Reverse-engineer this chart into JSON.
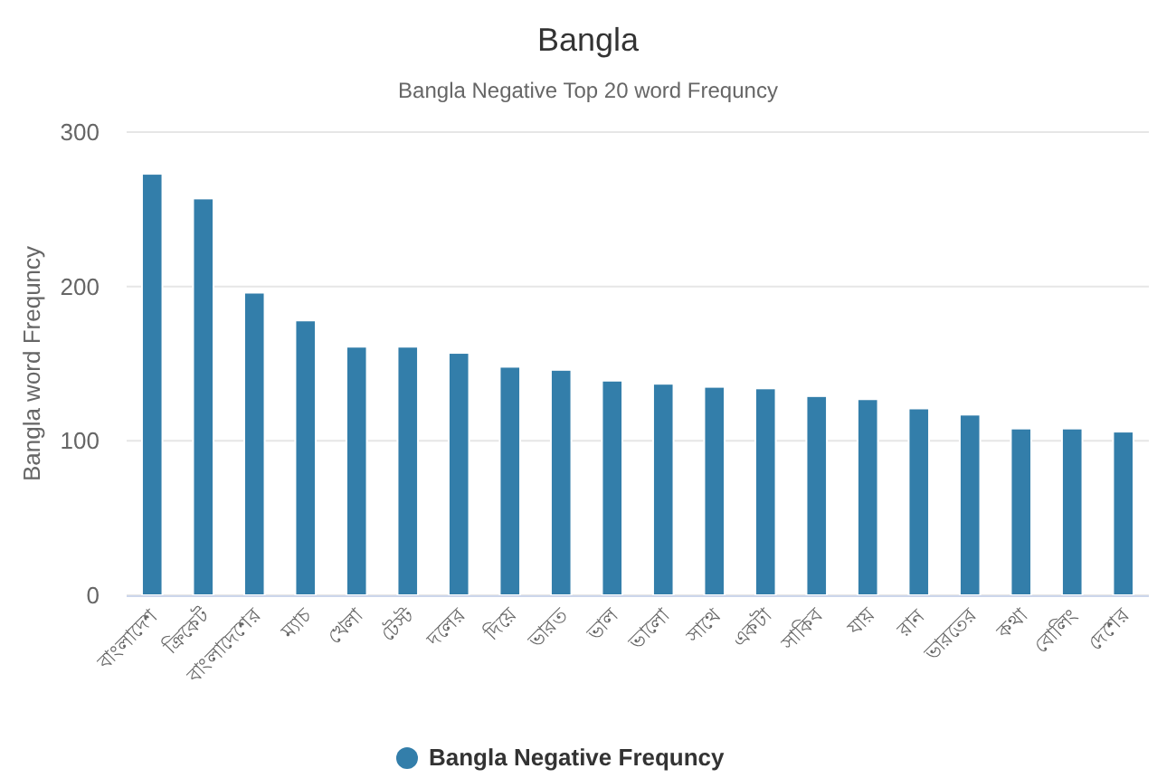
{
  "chart_data": {
    "type": "bar",
    "title": "Bangla",
    "subtitle": "Bangla Negative Top 20 word Frequncy",
    "ylabel": "Bangla word Frequncy",
    "categories": [
      "বাংলাদেশ",
      "ক্রিকেট",
      "বাংলাদেশের",
      "ম্যাচ",
      "খেলা",
      "টেস্ট",
      "দলের",
      "দিয়ে",
      "ভারত",
      "ভাল",
      "ভালো",
      "সাথে",
      "একটা",
      "সাকিব",
      "যায়",
      "রান",
      "ভারতের",
      "কথা",
      "বোলিং",
      "দেশের"
    ],
    "series": [
      {
        "name": "Bangla Negative Frequncy",
        "color": "#337eaa",
        "values": [
          273,
          257,
          196,
          178,
          161,
          161,
          157,
          148,
          146,
          139,
          137,
          135,
          134,
          129,
          127,
          121,
          117,
          108,
          108,
          106
        ]
      }
    ],
    "ylim": [
      0,
      300
    ],
    "yticks": [
      0,
      100,
      200,
      300
    ],
    "grid": "y",
    "legend": "bottom"
  }
}
